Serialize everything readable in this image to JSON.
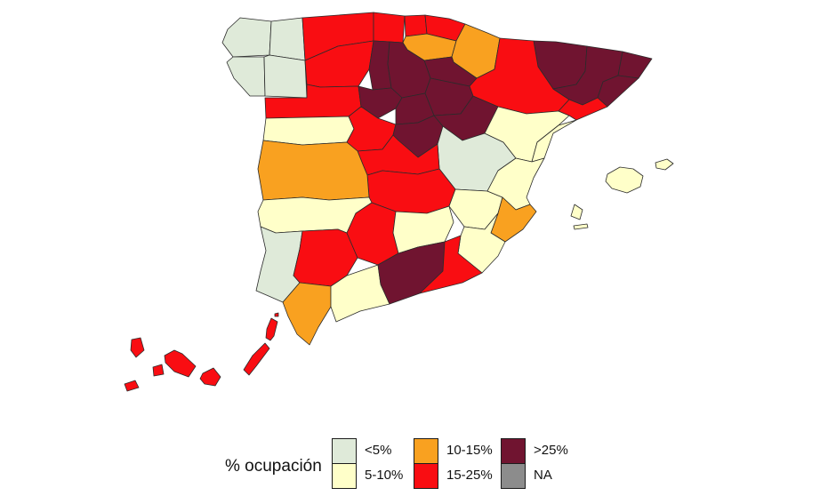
{
  "figure": {
    "background": "#ffffff"
  },
  "chart_data": {
    "type": "choropleth_map",
    "region": "Spain, provinces (peninsula, Balearic and Canary Islands)",
    "legend": {
      "title": "% ocupación",
      "position": "bottom"
    },
    "border_color": "#2b2b2b",
    "categories": [
      {
        "label": "<5%",
        "color": "#dfead9"
      },
      {
        "label": "5-10%",
        "color": "#ffffc9"
      },
      {
        "label": "10-15%",
        "color": "#f9a120"
      },
      {
        "label": "15-25%",
        "color": "#f90d12"
      },
      {
        "label": ">25%",
        "color": "#701430"
      },
      {
        "label": "NA",
        "color": "#8c8c8c"
      }
    ],
    "provinces": [
      {
        "name": "A Coruña",
        "category": "<5%"
      },
      {
        "name": "Lugo",
        "category": "<5%"
      },
      {
        "name": "Pontevedra",
        "category": "<5%"
      },
      {
        "name": "Ourense",
        "category": "<5%"
      },
      {
        "name": "Asturias",
        "category": "15-25%"
      },
      {
        "name": "Cantabria",
        "category": "15-25%"
      },
      {
        "name": "Vizcaya",
        "category": "15-25%"
      },
      {
        "name": "Guipúzcoa",
        "category": "15-25%"
      },
      {
        "name": "Álava",
        "category": "10-15%"
      },
      {
        "name": "Navarra",
        "category": "10-15%"
      },
      {
        "name": "La Rioja",
        "category": ">25%"
      },
      {
        "name": "León",
        "category": "15-25%"
      },
      {
        "name": "Palencia",
        "category": ">25%"
      },
      {
        "name": "Burgos",
        "category": ">25%"
      },
      {
        "name": "Zamora",
        "category": "15-25%"
      },
      {
        "name": "Valladolid",
        "category": ">25%"
      },
      {
        "name": "Soria",
        "category": ">25%"
      },
      {
        "name": "Salamanca",
        "category": "5-10%"
      },
      {
        "name": "Segovia",
        "category": ">25%"
      },
      {
        "name": "Ávila",
        "category": "15-25%"
      },
      {
        "name": "Madrid",
        "category": ">25%"
      },
      {
        "name": "Guadalajara",
        "category": ">25%"
      },
      {
        "name": "Cuenca",
        "category": "<5%"
      },
      {
        "name": "Toledo",
        "category": "15-25%"
      },
      {
        "name": "Ciudad Real",
        "category": "15-25%"
      },
      {
        "name": "Albacete",
        "category": "5-10%"
      },
      {
        "name": "Huesca",
        "category": ">25%"
      },
      {
        "name": "Zaragoza",
        "category": "15-25%"
      },
      {
        "name": "Teruel",
        "category": "5-10%"
      },
      {
        "name": "Lleida",
        "category": ">25%"
      },
      {
        "name": "Girona",
        "category": ">25%"
      },
      {
        "name": "Barcelona",
        "category": ">25%"
      },
      {
        "name": "Tarragona",
        "category": "15-25%"
      },
      {
        "name": "Castellón",
        "category": "5-10%"
      },
      {
        "name": "Valencia",
        "category": "5-10%"
      },
      {
        "name": "Alicante",
        "category": "10-15%"
      },
      {
        "name": "Murcia",
        "category": "5-10%"
      },
      {
        "name": "Cáceres",
        "category": "10-15%"
      },
      {
        "name": "Badajoz",
        "category": "5-10%"
      },
      {
        "name": "Huelva",
        "category": "<5%"
      },
      {
        "name": "Sevilla",
        "category": "15-25%"
      },
      {
        "name": "Cádiz",
        "category": "10-15%"
      },
      {
        "name": "Málaga",
        "category": "5-10%"
      },
      {
        "name": "Córdoba",
        "category": "15-25%"
      },
      {
        "name": "Jaén",
        "category": "5-10%"
      },
      {
        "name": "Granada",
        "category": ">25%"
      },
      {
        "name": "Almería",
        "category": "15-25%"
      },
      {
        "name": "Illes Balears",
        "category": "5-10%"
      },
      {
        "name": "Santa Cruz de Tenerife",
        "category": "15-25%"
      },
      {
        "name": "Las Palmas",
        "category": "15-25%"
      }
    ]
  }
}
